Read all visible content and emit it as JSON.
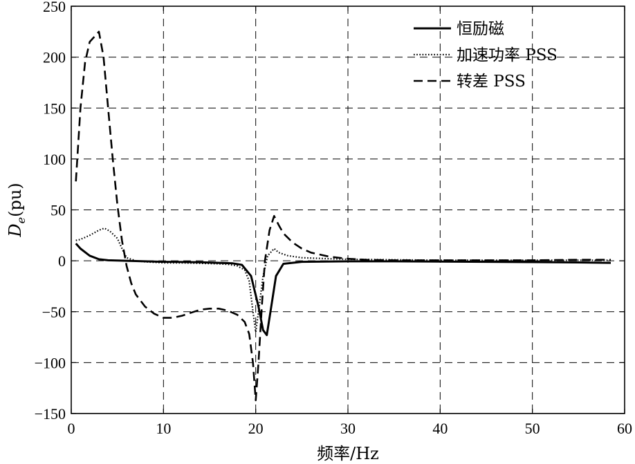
{
  "chart_data": {
    "type": "line",
    "xlabel": "频率/Hz",
    "ylabel_main": "D",
    "ylabel_sub": "e",
    "ylabel_unit": "(pu)",
    "xlim": [
      0,
      60
    ],
    "ylim": [
      -150,
      250
    ],
    "xticks": [
      0,
      10,
      20,
      30,
      40,
      50,
      60
    ],
    "yticks": [
      -150,
      -100,
      -50,
      0,
      50,
      100,
      150,
      200,
      250
    ],
    "grid": true,
    "legend_position": "top-right",
    "series": [
      {
        "name": "恒励磁",
        "style": "solid",
        "x": [
          0.5,
          1.0,
          2.0,
          3.0,
          4.0,
          6.0,
          8.0,
          10.0,
          12.0,
          14.0,
          16.0,
          17.5,
          18.5,
          19.5,
          20.3,
          20.8,
          21.2,
          21.6,
          22.2,
          23.0,
          25.0,
          30.0,
          35.0,
          40.0,
          45.0,
          50.0,
          55.0,
          58.5
        ],
        "y": [
          17,
          12,
          5,
          1.5,
          0.5,
          0,
          -0.5,
          -1,
          -1.2,
          -1.5,
          -2,
          -2.5,
          -4,
          -15,
          -45,
          -68,
          -73,
          -50,
          -15,
          -3,
          -1,
          -0.5,
          -0.5,
          -0.7,
          -1,
          -1.3,
          -1.6,
          -2
        ]
      },
      {
        "name": "加速功率 PSS",
        "style": "dotted",
        "x": [
          0.5,
          1.0,
          2.0,
          3.0,
          3.6,
          4.2,
          5.0,
          5.6,
          6.0,
          7.0,
          8.0,
          10.0,
          12.0,
          14.0,
          16.0,
          17.0,
          18.0,
          18.8,
          19.3,
          19.7,
          20.0,
          20.3,
          20.8,
          21.3,
          22.0,
          22.5,
          23.5,
          25.0,
          28.0,
          30.0,
          35.0,
          40.0,
          45.0,
          50.0,
          55.0,
          58.5
        ],
        "y": [
          20,
          21,
          25,
          30,
          32,
          29,
          22,
          10,
          3,
          0,
          -1,
          -2,
          -2,
          -2.5,
          -3,
          -3.5,
          -5,
          -9,
          -20,
          -50,
          -70,
          -50,
          -15,
          5,
          12,
          8,
          5,
          3,
          2,
          1.5,
          1,
          0.5,
          0.5,
          0.5,
          0.5,
          0.5
        ]
      },
      {
        "name": "转差 PSS",
        "style": "dashed",
        "x": [
          0.5,
          1.0,
          1.5,
          2.0,
          2.5,
          3.0,
          3.5,
          4.0,
          4.5,
          5.0,
          5.5,
          6.0,
          6.5,
          7.0,
          8.0,
          9.0,
          10.0,
          11.0,
          12.0,
          13.0,
          14.0,
          15.0,
          16.0,
          17.0,
          18.0,
          18.8,
          19.3,
          19.7,
          20.0,
          20.3,
          20.7,
          21.0,
          21.5,
          22.0,
          22.5,
          23.0,
          24.0,
          25.0,
          26.0,
          28.0,
          30.0,
          32.0,
          35.0,
          40.0,
          45.0,
          50.0,
          55.0,
          58.5
        ],
        "y": [
          78,
          150,
          195,
          215,
          220,
          225,
          200,
          150,
          100,
          55,
          20,
          -5,
          -22,
          -33,
          -45,
          -52,
          -56,
          -56,
          -54,
          -51,
          -48,
          -47,
          -47,
          -49,
          -53,
          -60,
          -72,
          -100,
          -137,
          -100,
          -40,
          0,
          30,
          44,
          35,
          27,
          18,
          12,
          8,
          4,
          2,
          1,
          0.5,
          0.5,
          0.5,
          0.5,
          1,
          1
        ]
      }
    ]
  }
}
